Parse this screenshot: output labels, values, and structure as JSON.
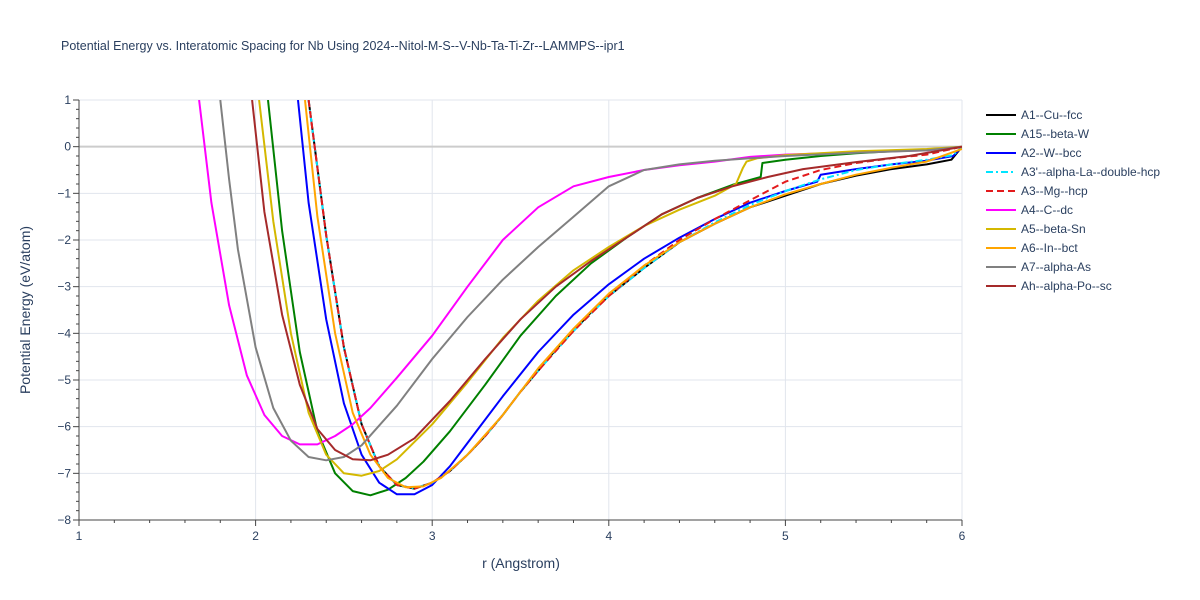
{
  "chart_data": {
    "type": "line",
    "title": "Potential Energy vs. Interatomic Spacing for Nb Using 2024--Nitol-M-S--V-Nb-Ta-Ti-Zr--LAMMPS--ipr1",
    "xlabel": "r (Angstrom)",
    "ylabel": "Potential Energy (eV/atom)",
    "xlim": [
      1,
      6
    ],
    "ylim": [
      -8,
      1
    ],
    "x_ticks": [
      "1",
      "2",
      "3",
      "4",
      "5",
      "6"
    ],
    "y_ticks": [
      "1",
      "0",
      "−1",
      "−2",
      "−3",
      "−4",
      "−5",
      "−6",
      "−7",
      "−8"
    ],
    "grid": true,
    "legend_position": "right",
    "series": [
      {
        "name": "A1--Cu--fcc",
        "color": "#000000",
        "dash": "solid",
        "points": [
          [
            2.3,
            1.0
          ],
          [
            2.4,
            -1.9
          ],
          [
            2.5,
            -4.3
          ],
          [
            2.6,
            -5.95
          ],
          [
            2.7,
            -6.85
          ],
          [
            2.8,
            -7.25
          ],
          [
            2.9,
            -7.33
          ],
          [
            3.0,
            -7.2
          ],
          [
            3.1,
            -6.95
          ],
          [
            3.2,
            -6.6
          ],
          [
            3.3,
            -6.2
          ],
          [
            3.4,
            -5.75
          ],
          [
            3.5,
            -5.25
          ],
          [
            3.6,
            -4.8
          ],
          [
            3.7,
            -4.35
          ],
          [
            3.8,
            -3.95
          ],
          [
            3.9,
            -3.55
          ],
          [
            4.0,
            -3.2
          ],
          [
            4.2,
            -2.6
          ],
          [
            4.4,
            -2.05
          ],
          [
            4.6,
            -1.65
          ],
          [
            4.8,
            -1.3
          ],
          [
            5.0,
            -1.05
          ],
          [
            5.2,
            -0.8
          ],
          [
            5.4,
            -0.62
          ],
          [
            5.6,
            -0.48
          ],
          [
            5.8,
            -0.38
          ],
          [
            5.94,
            -0.28
          ],
          [
            6.0,
            0.0
          ]
        ]
      },
      {
        "name": "A15--beta-W",
        "color": "#008000",
        "dash": "solid",
        "points": [
          [
            2.07,
            1.0
          ],
          [
            2.15,
            -1.8
          ],
          [
            2.25,
            -4.4
          ],
          [
            2.35,
            -6.1
          ],
          [
            2.45,
            -7.0
          ],
          [
            2.55,
            -7.38
          ],
          [
            2.65,
            -7.47
          ],
          [
            2.75,
            -7.35
          ],
          [
            2.85,
            -7.1
          ],
          [
            2.95,
            -6.75
          ],
          [
            3.1,
            -6.1
          ],
          [
            3.3,
            -5.1
          ],
          [
            3.5,
            -4.05
          ],
          [
            3.7,
            -3.2
          ],
          [
            3.9,
            -2.5
          ],
          [
            4.1,
            -1.95
          ],
          [
            4.3,
            -1.45
          ],
          [
            4.5,
            -1.1
          ],
          [
            4.7,
            -0.82
          ],
          [
            4.86,
            -0.65
          ],
          [
            4.87,
            -0.35
          ],
          [
            5.0,
            -0.28
          ],
          [
            5.2,
            -0.2
          ],
          [
            5.4,
            -0.14
          ],
          [
            5.6,
            -0.1
          ],
          [
            5.8,
            -0.07
          ],
          [
            6.0,
            0.0
          ]
        ]
      },
      {
        "name": "A2--W--bcc",
        "color": "#0000ff",
        "dash": "solid",
        "points": [
          [
            2.24,
            1.0
          ],
          [
            2.3,
            -1.2
          ],
          [
            2.4,
            -3.7
          ],
          [
            2.5,
            -5.5
          ],
          [
            2.6,
            -6.6
          ],
          [
            2.7,
            -7.2
          ],
          [
            2.8,
            -7.45
          ],
          [
            2.9,
            -7.45
          ],
          [
            3.0,
            -7.25
          ],
          [
            3.1,
            -6.85
          ],
          [
            3.2,
            -6.35
          ],
          [
            3.4,
            -5.35
          ],
          [
            3.6,
            -4.4
          ],
          [
            3.8,
            -3.6
          ],
          [
            4.0,
            -2.95
          ],
          [
            4.2,
            -2.4
          ],
          [
            4.4,
            -1.95
          ],
          [
            4.6,
            -1.55
          ],
          [
            4.8,
            -1.2
          ],
          [
            5.0,
            -0.95
          ],
          [
            5.18,
            -0.75
          ],
          [
            5.2,
            -0.6
          ],
          [
            5.4,
            -0.48
          ],
          [
            5.6,
            -0.38
          ],
          [
            5.8,
            -0.3
          ],
          [
            5.95,
            -0.2
          ],
          [
            6.0,
            0.0
          ]
        ]
      },
      {
        "name": "A3'--alpha-La--double-hcp",
        "color": "#00e5ff",
        "dash": "dashdot",
        "points": [
          [
            2.3,
            1.0
          ],
          [
            2.4,
            -1.9
          ],
          [
            2.5,
            -4.3
          ],
          [
            2.6,
            -5.95
          ],
          [
            2.7,
            -6.85
          ],
          [
            2.8,
            -7.25
          ],
          [
            2.9,
            -7.32
          ],
          [
            3.0,
            -7.2
          ],
          [
            3.1,
            -6.95
          ],
          [
            3.2,
            -6.6
          ],
          [
            3.3,
            -6.2
          ],
          [
            3.4,
            -5.75
          ],
          [
            3.5,
            -5.25
          ],
          [
            3.6,
            -4.8
          ],
          [
            3.8,
            -3.95
          ],
          [
            4.0,
            -3.2
          ],
          [
            4.2,
            -2.6
          ],
          [
            4.4,
            -2.05
          ],
          [
            4.6,
            -1.62
          ],
          [
            4.8,
            -1.25
          ],
          [
            5.0,
            -0.95
          ],
          [
            5.2,
            -0.7
          ],
          [
            5.4,
            -0.5
          ],
          [
            5.6,
            -0.38
          ],
          [
            5.8,
            -0.28
          ],
          [
            5.95,
            -0.18
          ],
          [
            6.0,
            0.0
          ]
        ]
      },
      {
        "name": "A3--Mg--hcp",
        "color": "#e31a1c",
        "dash": "dash",
        "points": [
          [
            2.3,
            1.0
          ],
          [
            2.4,
            -1.9
          ],
          [
            2.5,
            -4.3
          ],
          [
            2.6,
            -5.95
          ],
          [
            2.7,
            -6.85
          ],
          [
            2.8,
            -7.25
          ],
          [
            2.9,
            -7.33
          ],
          [
            3.0,
            -7.2
          ],
          [
            3.1,
            -6.95
          ],
          [
            3.2,
            -6.6
          ],
          [
            3.3,
            -6.2
          ],
          [
            3.4,
            -5.75
          ],
          [
            3.5,
            -5.25
          ],
          [
            3.6,
            -4.8
          ],
          [
            3.8,
            -3.95
          ],
          [
            4.0,
            -3.2
          ],
          [
            4.2,
            -2.55
          ],
          [
            4.4,
            -2.0
          ],
          [
            4.6,
            -1.55
          ],
          [
            4.8,
            -1.15
          ],
          [
            4.9,
            -0.95
          ],
          [
            5.0,
            -0.75
          ],
          [
            5.2,
            -0.5
          ],
          [
            5.4,
            -0.35
          ],
          [
            5.6,
            -0.25
          ],
          [
            5.8,
            -0.17
          ],
          [
            6.0,
            0.0
          ]
        ]
      },
      {
        "name": "A4--C--dc",
        "color": "#ff00ff",
        "dash": "solid",
        "points": [
          [
            1.68,
            1.0
          ],
          [
            1.75,
            -1.2
          ],
          [
            1.85,
            -3.4
          ],
          [
            1.95,
            -4.9
          ],
          [
            2.05,
            -5.75
          ],
          [
            2.15,
            -6.2
          ],
          [
            2.25,
            -6.38
          ],
          [
            2.35,
            -6.38
          ],
          [
            2.45,
            -6.2
          ],
          [
            2.55,
            -5.95
          ],
          [
            2.65,
            -5.6
          ],
          [
            2.8,
            -4.95
          ],
          [
            3.0,
            -4.05
          ],
          [
            3.2,
            -3.0
          ],
          [
            3.4,
            -2.0
          ],
          [
            3.6,
            -1.3
          ],
          [
            3.8,
            -0.85
          ],
          [
            4.0,
            -0.65
          ],
          [
            4.2,
            -0.5
          ],
          [
            4.4,
            -0.4
          ],
          [
            4.6,
            -0.32
          ],
          [
            4.8,
            -0.22
          ],
          [
            5.0,
            -0.17
          ],
          [
            5.4,
            -0.12
          ],
          [
            5.8,
            -0.08
          ],
          [
            6.0,
            0.0
          ]
        ]
      },
      {
        "name": "A5--beta-Sn",
        "color": "#d4b800",
        "dash": "solid",
        "points": [
          [
            2.02,
            1.0
          ],
          [
            2.1,
            -1.6
          ],
          [
            2.2,
            -4.0
          ],
          [
            2.3,
            -5.7
          ],
          [
            2.4,
            -6.6
          ],
          [
            2.5,
            -7.0
          ],
          [
            2.6,
            -7.05
          ],
          [
            2.7,
            -6.95
          ],
          [
            2.8,
            -6.7
          ],
          [
            3.0,
            -5.95
          ],
          [
            3.2,
            -5.05
          ],
          [
            3.4,
            -4.1
          ],
          [
            3.6,
            -3.3
          ],
          [
            3.8,
            -2.65
          ],
          [
            4.0,
            -2.15
          ],
          [
            4.2,
            -1.7
          ],
          [
            4.4,
            -1.35
          ],
          [
            4.6,
            -1.05
          ],
          [
            4.72,
            -0.8
          ],
          [
            4.76,
            -0.45
          ],
          [
            4.78,
            -0.32
          ],
          [
            4.84,
            -0.25
          ],
          [
            5.0,
            -0.18
          ],
          [
            5.4,
            -0.1
          ],
          [
            5.8,
            -0.05
          ],
          [
            6.0,
            0.0
          ]
        ]
      },
      {
        "name": "A6--In--bct",
        "color": "#ffa500",
        "dash": "solid",
        "points": [
          [
            2.28,
            1.0
          ],
          [
            2.35,
            -1.5
          ],
          [
            2.45,
            -4.0
          ],
          [
            2.55,
            -5.7
          ],
          [
            2.65,
            -6.6
          ],
          [
            2.75,
            -7.1
          ],
          [
            2.85,
            -7.3
          ],
          [
            2.95,
            -7.28
          ],
          [
            3.05,
            -7.1
          ],
          [
            3.2,
            -6.6
          ],
          [
            3.4,
            -5.75
          ],
          [
            3.6,
            -4.75
          ],
          [
            3.8,
            -3.9
          ],
          [
            4.0,
            -3.15
          ],
          [
            4.2,
            -2.55
          ],
          [
            4.4,
            -2.05
          ],
          [
            4.6,
            -1.65
          ],
          [
            4.8,
            -1.3
          ],
          [
            5.0,
            -1.02
          ],
          [
            5.2,
            -0.8
          ],
          [
            5.4,
            -0.6
          ],
          [
            5.6,
            -0.45
          ],
          [
            5.8,
            -0.32
          ],
          [
            6.0,
            -0.05
          ]
        ]
      },
      {
        "name": "A7--alpha-As",
        "color": "#808080",
        "dash": "solid",
        "points": [
          [
            1.8,
            1.0
          ],
          [
            1.85,
            -0.7
          ],
          [
            1.9,
            -2.2
          ],
          [
            2.0,
            -4.3
          ],
          [
            2.1,
            -5.6
          ],
          [
            2.2,
            -6.3
          ],
          [
            2.3,
            -6.65
          ],
          [
            2.4,
            -6.72
          ],
          [
            2.5,
            -6.65
          ],
          [
            2.6,
            -6.4
          ],
          [
            2.8,
            -5.55
          ],
          [
            3.0,
            -4.55
          ],
          [
            3.2,
            -3.65
          ],
          [
            3.4,
            -2.85
          ],
          [
            3.6,
            -2.15
          ],
          [
            3.8,
            -1.5
          ],
          [
            4.0,
            -0.85
          ],
          [
            4.2,
            -0.5
          ],
          [
            4.4,
            -0.38
          ],
          [
            4.6,
            -0.3
          ],
          [
            4.8,
            -0.25
          ],
          [
            5.0,
            -0.2
          ],
          [
            5.4,
            -0.13
          ],
          [
            5.8,
            -0.08
          ],
          [
            6.0,
            0.0
          ]
        ]
      },
      {
        "name": "Ah--alpha-Po--sc",
        "color": "#a52a2a",
        "dash": "solid",
        "points": [
          [
            1.98,
            1.0
          ],
          [
            2.05,
            -1.4
          ],
          [
            2.15,
            -3.6
          ],
          [
            2.25,
            -5.1
          ],
          [
            2.35,
            -6.05
          ],
          [
            2.45,
            -6.5
          ],
          [
            2.55,
            -6.7
          ],
          [
            2.65,
            -6.72
          ],
          [
            2.75,
            -6.6
          ],
          [
            2.9,
            -6.25
          ],
          [
            3.1,
            -5.45
          ],
          [
            3.3,
            -4.55
          ],
          [
            3.5,
            -3.7
          ],
          [
            3.7,
            -3.0
          ],
          [
            3.9,
            -2.45
          ],
          [
            4.1,
            -1.95
          ],
          [
            4.22,
            -1.65
          ],
          [
            4.3,
            -1.45
          ],
          [
            4.5,
            -1.1
          ],
          [
            4.7,
            -0.85
          ],
          [
            4.9,
            -0.65
          ],
          [
            5.1,
            -0.48
          ],
          [
            5.4,
            -0.33
          ],
          [
            5.7,
            -0.2
          ],
          [
            6.0,
            0.0
          ]
        ]
      }
    ]
  }
}
